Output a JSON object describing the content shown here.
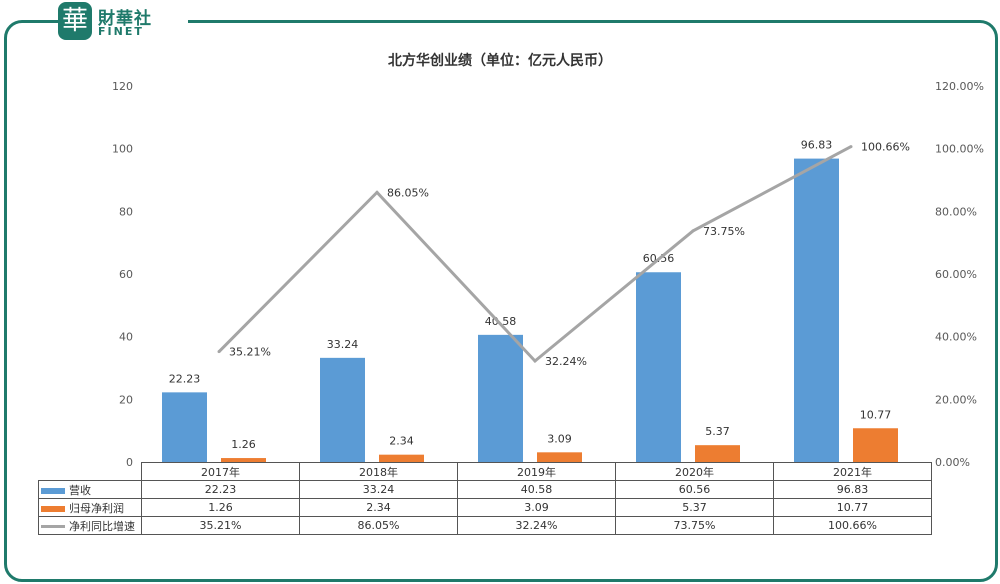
{
  "brand": {
    "mark": "華",
    "name_cn": "財華社",
    "name_en": "FINET"
  },
  "chart_data": {
    "type": "bar",
    "title": "北方华创业绩（单位：亿元人民币）",
    "categories": [
      "2017年",
      "2018年",
      "2019年",
      "2020年",
      "2021年"
    ],
    "series": [
      {
        "name": "营收",
        "kind": "bar",
        "color": "#5b9bd5",
        "values": [
          22.23,
          33.24,
          40.58,
          60.56,
          96.83
        ],
        "labels": [
          "22.23",
          "33.24",
          "40.58",
          "60.56",
          "96.83"
        ]
      },
      {
        "name": "归母净利润",
        "kind": "bar",
        "color": "#ed7d31",
        "values": [
          1.26,
          2.34,
          3.09,
          5.37,
          10.77
        ],
        "labels": [
          "1.26",
          "2.34",
          "3.09",
          "5.37",
          "10.77"
        ]
      },
      {
        "name": "净利同比增速",
        "kind": "line",
        "axis": "right",
        "color": "#a5a5a5",
        "values": [
          35.21,
          86.05,
          32.24,
          73.75,
          100.66
        ],
        "labels": [
          "35.21%",
          "86.05%",
          "32.24%",
          "73.75%",
          "100.66%"
        ]
      }
    ],
    "ylim": [
      0,
      120
    ],
    "y_ticks": [
      "0",
      "20",
      "40",
      "60",
      "80",
      "100",
      "120"
    ],
    "y2lim": [
      0,
      120
    ],
    "y2_ticks": [
      "0.00%",
      "20.00%",
      "40.00%",
      "60.00%",
      "80.00%",
      "100.00%",
      "120.00%"
    ],
    "grid": false,
    "legend": "data table"
  }
}
